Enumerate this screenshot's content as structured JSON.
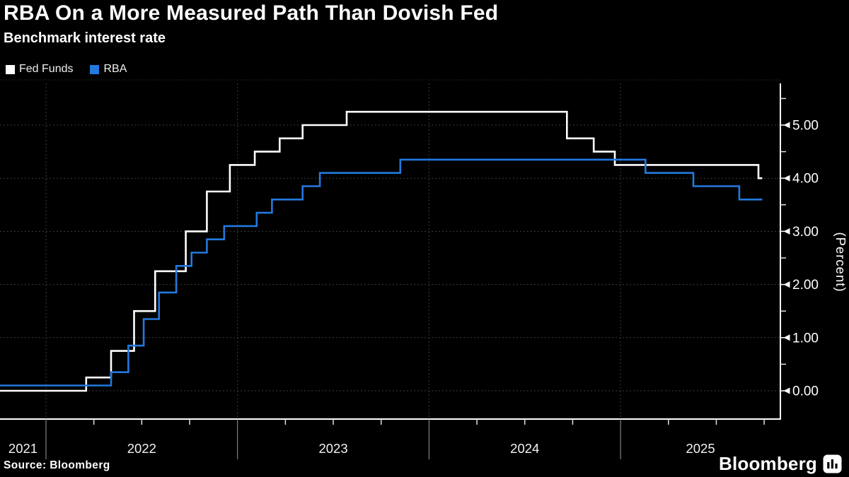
{
  "header": {
    "title": "RBA On a More Measured Path Than Dovish Fed",
    "subtitle": "Benchmark interest rate"
  },
  "legend": {
    "items": [
      {
        "label": "Fed Funds",
        "color": "#ffffff"
      },
      {
        "label": "RBA",
        "color": "#2379de"
      }
    ]
  },
  "footer": {
    "source": "Source: Bloomberg",
    "brand": "Bloomberg"
  },
  "chart_data": {
    "type": "line",
    "step": true,
    "title": "RBA On a More Measured Path Than Dovish Fed",
    "subtitle": "Benchmark interest rate",
    "ylabel": "(Percent)",
    "legend_position": "top-left",
    "grid": "dotted",
    "background": "#000000",
    "xlim": [
      2021.76,
      2025.74
    ],
    "ylim": [
      -0.53,
      5.85
    ],
    "x_end": 2025.74,
    "x_year_labels": [
      "2021",
      "2022",
      "2023",
      "2024",
      "2025"
    ],
    "x_year_start": 2021,
    "y_ticks": [
      {
        "v": 0,
        "label": "0.00"
      },
      {
        "v": 1,
        "label": "1.00"
      },
      {
        "v": 2,
        "label": "2.00"
      },
      {
        "v": 3,
        "label": "3.00"
      },
      {
        "v": 4,
        "label": "4.00"
      },
      {
        "v": 5,
        "label": "5.00"
      }
    ],
    "y_minor_ticks": [
      0.5,
      1.5,
      2.5,
      3.5,
      4.5,
      5.5
    ],
    "series": [
      {
        "name": "Fed Funds",
        "color": "#ffffff",
        "points": [
          [
            2021.76,
            0.0
          ],
          [
            2022.21,
            0.25
          ],
          [
            2022.34,
            0.75
          ],
          [
            2022.46,
            1.5
          ],
          [
            2022.57,
            2.25
          ],
          [
            2022.73,
            3.0
          ],
          [
            2022.84,
            3.75
          ],
          [
            2022.96,
            4.25
          ],
          [
            2023.09,
            4.5
          ],
          [
            2023.22,
            4.75
          ],
          [
            2023.34,
            5.0
          ],
          [
            2023.57,
            5.25
          ],
          [
            2024.72,
            4.75
          ],
          [
            2024.86,
            4.5
          ],
          [
            2024.97,
            4.25
          ],
          [
            2025.72,
            4.0
          ]
        ]
      },
      {
        "name": "RBA",
        "color": "#2379de",
        "points": [
          [
            2021.76,
            0.1
          ],
          [
            2022.34,
            0.35
          ],
          [
            2022.43,
            0.85
          ],
          [
            2022.51,
            1.35
          ],
          [
            2022.59,
            1.85
          ],
          [
            2022.68,
            2.35
          ],
          [
            2022.76,
            2.6
          ],
          [
            2022.84,
            2.85
          ],
          [
            2022.93,
            3.1
          ],
          [
            2023.1,
            3.35
          ],
          [
            2023.18,
            3.6
          ],
          [
            2023.34,
            3.85
          ],
          [
            2023.43,
            4.1
          ],
          [
            2023.85,
            4.35
          ],
          [
            2025.13,
            4.1
          ],
          [
            2025.38,
            3.85
          ],
          [
            2025.62,
            3.6
          ]
        ]
      }
    ]
  }
}
